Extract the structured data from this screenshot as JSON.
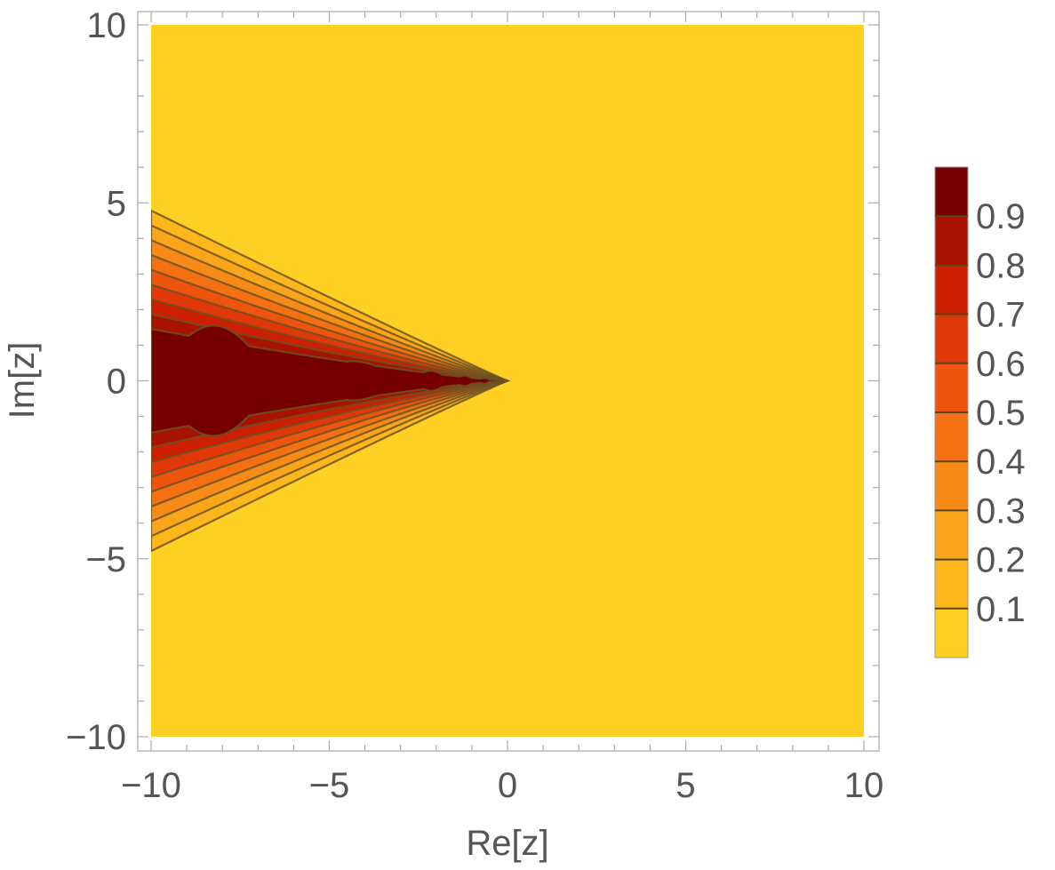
{
  "chart_data": {
    "type": "contour",
    "xlabel": "Re[z]",
    "ylabel": "Im[z]",
    "xlim": [
      -10,
      10
    ],
    "ylim": [
      -10,
      10
    ],
    "xticks": [
      -10,
      -5,
      0,
      5,
      10
    ],
    "yticks": [
      -10,
      -5,
      0,
      5,
      10
    ],
    "xtick_labels": [
      "−10",
      "−5",
      "0",
      "5",
      "10"
    ],
    "ytick_labels": [
      "−10",
      "−5",
      "0",
      "5",
      "10"
    ],
    "contour_levels": [
      0.1,
      0.2,
      0.3,
      0.4,
      0.5,
      0.6,
      0.7,
      0.8,
      0.9
    ],
    "legend": {
      "placement": "right",
      "range": [
        0,
        1
      ],
      "tick_values": [
        0.1,
        0.2,
        0.3,
        0.4,
        0.5,
        0.6,
        0.7,
        0.8,
        0.9
      ],
      "tick_labels": [
        "0.1",
        "0.2",
        "0.3",
        "0.4",
        "0.5",
        "0.6",
        "0.7",
        "0.8",
        "0.9"
      ]
    },
    "band_colors": [
      "#fdd023",
      "#fdb71d",
      "#fba51b",
      "#f88b17",
      "#f57012",
      "#ef540e",
      "#e1380a",
      "#cc1f03",
      "#a81200",
      "#760000"
    ],
    "region_vertex": [
      0,
      0
    ],
    "region_edge_at_re_minus_10": {
      "im_upper": 5.2,
      "im_lower": -5.2
    },
    "dark_lobes": [
      {
        "re_from": -10,
        "re_to": -6.5,
        "half_height": 1.55
      },
      {
        "re_from": -5.8,
        "re_to": -2.9,
        "half_height": 0.55
      },
      {
        "re_from": -2.7,
        "re_to": -1.6,
        "half_height": 0.28
      },
      {
        "re_from": -1.5,
        "re_to": -0.9,
        "half_height": 0.15
      },
      {
        "re_from": -0.85,
        "re_to": -0.45,
        "half_height": 0.08
      }
    ],
    "grid": false
  }
}
